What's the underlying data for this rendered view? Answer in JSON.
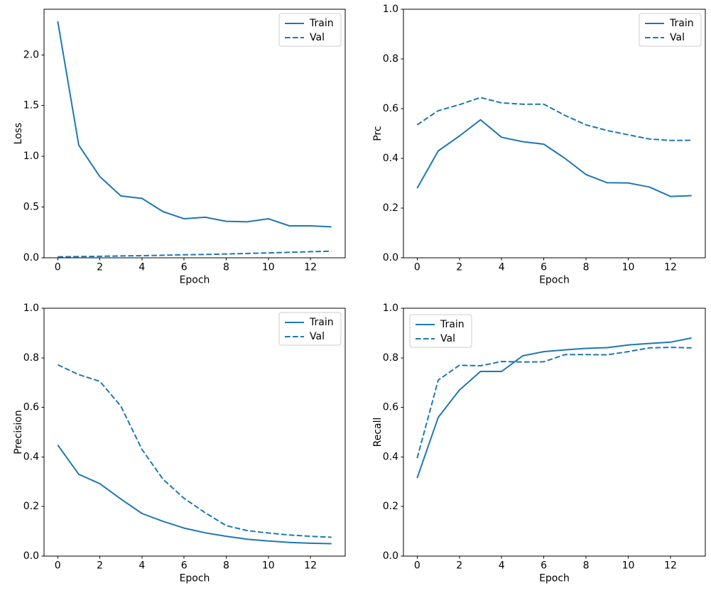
{
  "figure": {
    "background": "#ffffff",
    "line_color": "#1f77b4",
    "spine_color": "#000000",
    "legend_border_color": "#cccccc",
    "legend_background": "#ffffff"
  },
  "chart_data": [
    {
      "type": "line",
      "name": "loss",
      "title": "",
      "xlabel": "Epoch",
      "ylabel": "Loss",
      "x": [
        0,
        1,
        2,
        3,
        4,
        5,
        6,
        7,
        8,
        9,
        10,
        11,
        12,
        13
      ],
      "series": [
        {
          "name": "Train",
          "style": "solid",
          "values": [
            2.33,
            1.11,
            0.8,
            0.61,
            0.585,
            0.455,
            0.385,
            0.4,
            0.36,
            0.355,
            0.385,
            0.315,
            0.315,
            0.305
          ]
        },
        {
          "name": "Val",
          "style": "dashed",
          "values": [
            0.01,
            0.012,
            0.015,
            0.018,
            0.021,
            0.025,
            0.03,
            0.033,
            0.038,
            0.043,
            0.048,
            0.054,
            0.06,
            0.065
          ]
        }
      ],
      "xlim": [
        -0.65,
        13.65
      ],
      "ylim": [
        0,
        2.45
      ],
      "xticks": [
        0,
        2,
        4,
        6,
        8,
        10,
        12
      ],
      "yticks": [
        0.0,
        0.5,
        1.0,
        1.5,
        2.0
      ],
      "legend_loc": "upper-right",
      "grid": false
    },
    {
      "type": "line",
      "name": "prc",
      "title": "",
      "xlabel": "Epoch",
      "ylabel": "Prc",
      "x": [
        0,
        1,
        2,
        3,
        4,
        5,
        6,
        7,
        8,
        9,
        10,
        11,
        12,
        13
      ],
      "series": [
        {
          "name": "Train",
          "style": "solid",
          "values": [
            0.28,
            0.43,
            0.49,
            0.555,
            0.485,
            0.467,
            0.457,
            0.4,
            0.335,
            0.302,
            0.301,
            0.285,
            0.247,
            0.25
          ]
        },
        {
          "name": "Val",
          "style": "dashed",
          "values": [
            0.535,
            0.592,
            0.616,
            0.645,
            0.623,
            0.618,
            0.618,
            0.573,
            0.535,
            0.512,
            0.495,
            0.478,
            0.472,
            0.473
          ]
        }
      ],
      "xlim": [
        -0.65,
        13.65
      ],
      "ylim": [
        0,
        1
      ],
      "xticks": [
        0,
        2,
        4,
        6,
        8,
        10,
        12
      ],
      "yticks": [
        0.0,
        0.2,
        0.4,
        0.6,
        0.8,
        1.0
      ],
      "legend_loc": "upper-right",
      "grid": false
    },
    {
      "type": "line",
      "name": "precision",
      "title": "",
      "xlabel": "Epoch",
      "ylabel": "Precision",
      "x": [
        0,
        1,
        2,
        3,
        4,
        5,
        6,
        7,
        8,
        9,
        10,
        11,
        12,
        13
      ],
      "series": [
        {
          "name": "Train",
          "style": "solid",
          "values": [
            0.448,
            0.33,
            0.292,
            0.23,
            0.172,
            0.14,
            0.113,
            0.094,
            0.08,
            0.068,
            0.061,
            0.055,
            0.052,
            0.05
          ]
        },
        {
          "name": "Val",
          "style": "dashed",
          "values": [
            0.772,
            0.732,
            0.705,
            0.605,
            0.43,
            0.31,
            0.233,
            0.175,
            0.123,
            0.103,
            0.093,
            0.085,
            0.08,
            0.076
          ]
        }
      ],
      "xlim": [
        -0.65,
        13.65
      ],
      "ylim": [
        0,
        1
      ],
      "xticks": [
        0,
        2,
        4,
        6,
        8,
        10,
        12
      ],
      "yticks": [
        0.0,
        0.2,
        0.4,
        0.6,
        0.8,
        1.0
      ],
      "legend_loc": "upper-right",
      "grid": false
    },
    {
      "type": "line",
      "name": "recall",
      "title": "",
      "xlabel": "Epoch",
      "ylabel": "Recall",
      "x": [
        0,
        1,
        2,
        3,
        4,
        5,
        6,
        7,
        8,
        9,
        10,
        11,
        12,
        13
      ],
      "series": [
        {
          "name": "Train",
          "style": "solid",
          "values": [
            0.315,
            0.56,
            0.67,
            0.745,
            0.745,
            0.808,
            0.825,
            0.832,
            0.838,
            0.841,
            0.852,
            0.858,
            0.863,
            0.88
          ]
        },
        {
          "name": "Val",
          "style": "dashed",
          "values": [
            0.395,
            0.71,
            0.77,
            0.768,
            0.785,
            0.783,
            0.784,
            0.813,
            0.813,
            0.812,
            0.825,
            0.84,
            0.842,
            0.84
          ]
        }
      ],
      "xlim": [
        -0.65,
        13.65
      ],
      "ylim": [
        0,
        1
      ],
      "xticks": [
        0,
        2,
        4,
        6,
        8,
        10,
        12
      ],
      "yticks": [
        0.0,
        0.2,
        0.4,
        0.6,
        0.8,
        1.0
      ],
      "legend_loc": "upper-left",
      "grid": false
    }
  ]
}
